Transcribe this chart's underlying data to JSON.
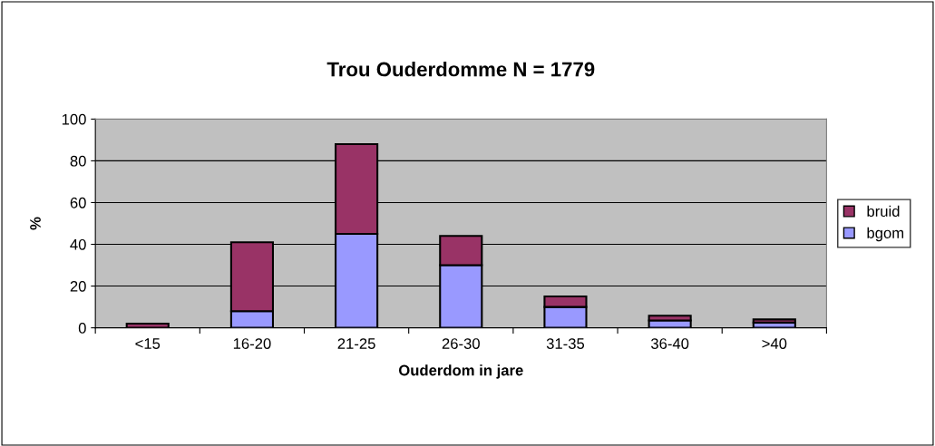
{
  "chart_data": {
    "type": "bar",
    "title": "Trou Ouderdomme N = 1779",
    "xlabel": "Ouderdom in jare",
    "ylabel": "%",
    "categories": [
      "<15",
      "16-20",
      "21-25",
      "26-30",
      "31-35",
      "36-40",
      ">40"
    ],
    "stacked": true,
    "series": [
      {
        "name": "bgom",
        "color": "#9999ff",
        "values": [
          0,
          8,
          45,
          30,
          10,
          3.5,
          2.5
        ]
      },
      {
        "name": "bruid",
        "color": "#993366",
        "values": [
          2,
          33,
          43,
          14,
          5,
          2.3,
          1.5
        ]
      }
    ],
    "ylim": [
      0,
      100
    ],
    "yticks": [
      0,
      20,
      40,
      60,
      80,
      100
    ],
    "grid": "y",
    "legend": "right"
  }
}
